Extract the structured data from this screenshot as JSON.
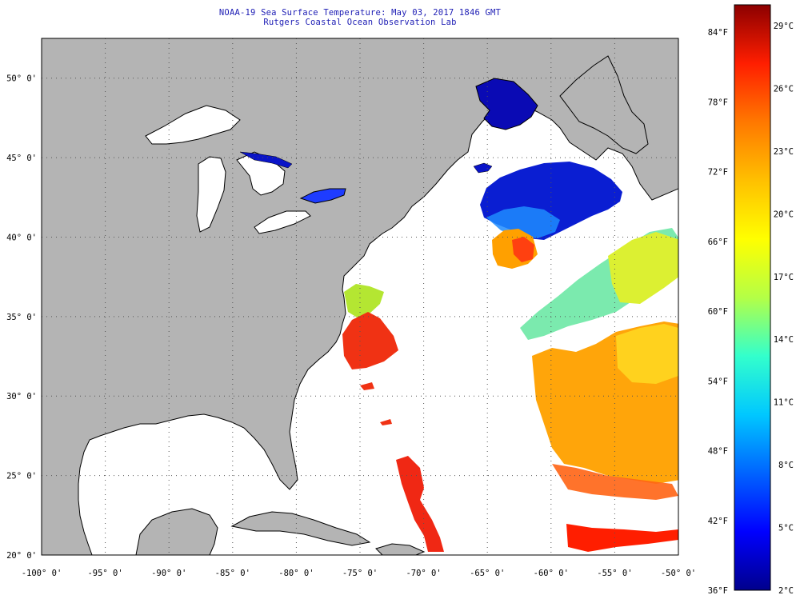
{
  "title_line1": "NOAA-19 Sea Surface Temperature:  May 03, 2017 1846 GMT",
  "title_line2": "Rutgers Coastal Ocean Observation Lab",
  "map": {
    "lon_range": [
      -100,
      -50
    ],
    "lat_range": [
      20,
      52.5
    ],
    "lon_labels": [
      {
        "value": -100,
        "text": "-100° 0'"
      },
      {
        "value": -95,
        "text": "-95° 0'"
      },
      {
        "value": -90,
        "text": "-90° 0'"
      },
      {
        "value": -85,
        "text": "-85° 0'"
      },
      {
        "value": -80,
        "text": "-80° 0'"
      },
      {
        "value": -75,
        "text": "-75° 0'"
      },
      {
        "value": -70,
        "text": "-70° 0'"
      },
      {
        "value": -65,
        "text": "-65° 0'"
      },
      {
        "value": -60,
        "text": "-60° 0'"
      },
      {
        "value": -55,
        "text": "-55° 0'"
      },
      {
        "value": -50,
        "text": "-50° 0'"
      }
    ],
    "lat_labels": [
      {
        "value": 20,
        "text": "20° 0'"
      },
      {
        "value": 25,
        "text": "25° 0'"
      },
      {
        "value": 30,
        "text": "30° 0'"
      },
      {
        "value": 35,
        "text": "35° 0'"
      },
      {
        "value": 40,
        "text": "40° 0'"
      },
      {
        "value": 45,
        "text": "45° 0'"
      },
      {
        "value": 50,
        "text": "50° 0'"
      }
    ],
    "colors": {
      "land": "#b4b4b4",
      "ocean": "#ffffff",
      "grid": "#555555",
      "coast": "#000000"
    }
  },
  "colorbar": {
    "fahrenheit": [
      "84°F",
      "78°F",
      "72°F",
      "66°F",
      "60°F",
      "54°F",
      "48°F",
      "42°F",
      "36°F"
    ],
    "celsius": [
      "29°C",
      "26°C",
      "23°C",
      "20°C",
      "17°C",
      "14°C",
      "11°C",
      "8°C",
      "5°C",
      "2°C"
    ],
    "gradient": [
      "#00008c",
      "#0000ff",
      "#0064ff",
      "#00c8ff",
      "#33ffcc",
      "#b4ff46",
      "#ffff00",
      "#ffc000",
      "#ff7800",
      "#ff1e00",
      "#8c0000"
    ]
  }
}
